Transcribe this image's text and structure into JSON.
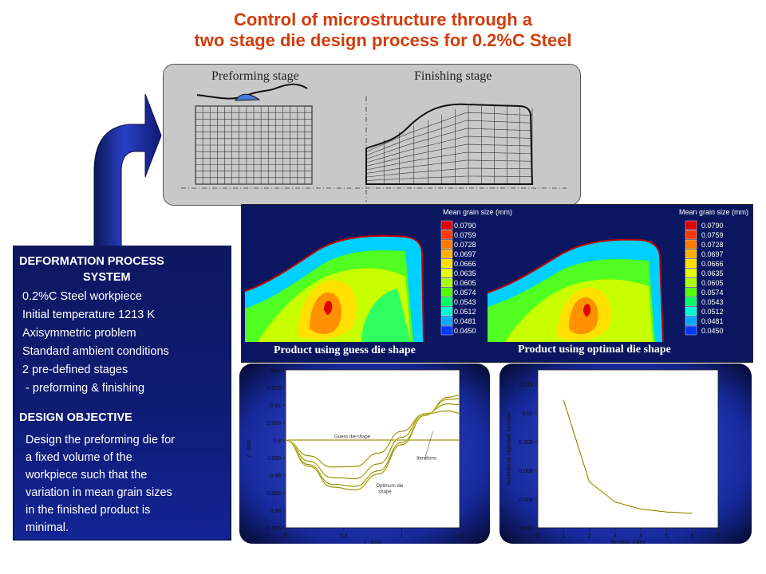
{
  "title": {
    "line1": "Control of microstructure through a",
    "line2": "two stage die design process for 0.2%C Steel"
  },
  "stages": {
    "preforming": "Preforming stage",
    "finishing": "Finishing stage"
  },
  "grain_panel": {
    "legend_title": "Mean grain size (mm)",
    "legend_values": [
      "0.0790",
      "0.0759",
      "0.0728",
      "0.0697",
      "0.0666",
      "0.0635",
      "0.0605",
      "0.0574",
      "0.0543",
      "0.0512",
      "0.0481",
      "0.0450"
    ],
    "legend_colors": [
      "#e00000",
      "#ff3a00",
      "#ff7a00",
      "#ffb000",
      "#ffe000",
      "#e6ff00",
      "#a8ff00",
      "#50ff00",
      "#00ff60",
      "#00ffd0",
      "#00a8ff",
      "#0038ff"
    ],
    "caption_guess": "Product using guess die shape",
    "caption_optimal": "Product using optimal die shape"
  },
  "info": {
    "heading1_line1": "DEFORMATION PROCESS",
    "heading1_line2": "SYSTEM",
    "items": [
      "0.2%C Steel workpiece",
      "Initial temperature 1213 K",
      "Axisymmetric problem",
      "Standard ambient conditions",
      "2 pre-defined stages",
      " - preforming & finishing"
    ],
    "heading2": "DESIGN OBJECTIVE",
    "objective_lines": [
      "Design the preforming die for",
      "a fixed volume of the",
      "workpiece such that the",
      "variation in mean grain sizes",
      "in the finished product is",
      "minimal."
    ]
  },
  "colors": {
    "title": "#d23c0c",
    "navy": "#0d1860",
    "arrow": "#1c2fa8"
  },
  "chart_data": [
    {
      "type": "line",
      "title": "",
      "xlabel": "r - axis",
      "ylabel": "z - axis",
      "xlim": [
        0,
        1.5
      ],
      "ylim": [
        0.875,
        0.92
      ],
      "x_ticks": [
        "0",
        "0.5",
        "1",
        "1.5"
      ],
      "y_ticks": [
        "0.92",
        "0.915",
        "0.91",
        "0.905",
        "0.9",
        "0.895",
        "0.89",
        "0.885",
        "0.88",
        "0.875"
      ],
      "annotations": [
        "Guess die shape",
        "Iterations",
        "Optimum die shape"
      ],
      "series": [
        {
          "x": [
            0,
            0.2,
            0.4,
            0.6,
            0.8,
            1.0,
            1.2,
            1.4,
            1.5
          ],
          "y": [
            0.9,
            0.9,
            0.9,
            0.9,
            0.9,
            0.9,
            0.9,
            0.9,
            0.9
          ]
        },
        {
          "x": [
            0,
            0.2,
            0.4,
            0.6,
            0.8,
            1.0,
            1.2,
            1.4,
            1.5
          ],
          "y": [
            0.9,
            0.8955,
            0.8923,
            0.8925,
            0.8963,
            0.9025,
            0.9075,
            0.9083,
            0.9077
          ]
        },
        {
          "x": [
            0,
            0.2,
            0.4,
            0.6,
            0.8,
            1.0,
            1.2,
            1.4,
            1.5
          ],
          "y": [
            0.9,
            0.894,
            0.8893,
            0.889,
            0.8932,
            0.9008,
            0.9075,
            0.9103,
            0.9101
          ]
        },
        {
          "x": [
            0,
            0.2,
            0.4,
            0.6,
            0.8,
            1.0,
            1.2,
            1.4,
            1.5
          ],
          "y": [
            0.9,
            0.893,
            0.8874,
            0.8868,
            0.8912,
            0.8993,
            0.9071,
            0.9116,
            0.9118
          ]
        },
        {
          "x": [
            0,
            0.2,
            0.4,
            0.6,
            0.8,
            1.0,
            1.2,
            1.4,
            1.5
          ],
          "y": [
            0.9,
            0.8925,
            0.8866,
            0.8858,
            0.8903,
            0.8987,
            0.907,
            0.9122,
            0.9128
          ]
        }
      ]
    },
    {
      "type": "line",
      "title": "",
      "xlabel": "Iteration index",
      "ylabel": "Normalized objective function",
      "xlim": [
        0,
        7
      ],
      "ylim": [
        0.002,
        0.013
      ],
      "x_ticks": [
        "0",
        "1",
        "2",
        "3",
        "4",
        "5",
        "6",
        "7"
      ],
      "y_ticks": [
        "0.012",
        "0.01",
        "0.008",
        "0.006",
        "0.004",
        "0.002"
      ],
      "series": [
        {
          "x": [
            1,
            2,
            3,
            4,
            5,
            6
          ],
          "y": [
            0.0109,
            0.0052,
            0.0038,
            0.0033,
            0.0031,
            0.003
          ]
        }
      ]
    }
  ]
}
